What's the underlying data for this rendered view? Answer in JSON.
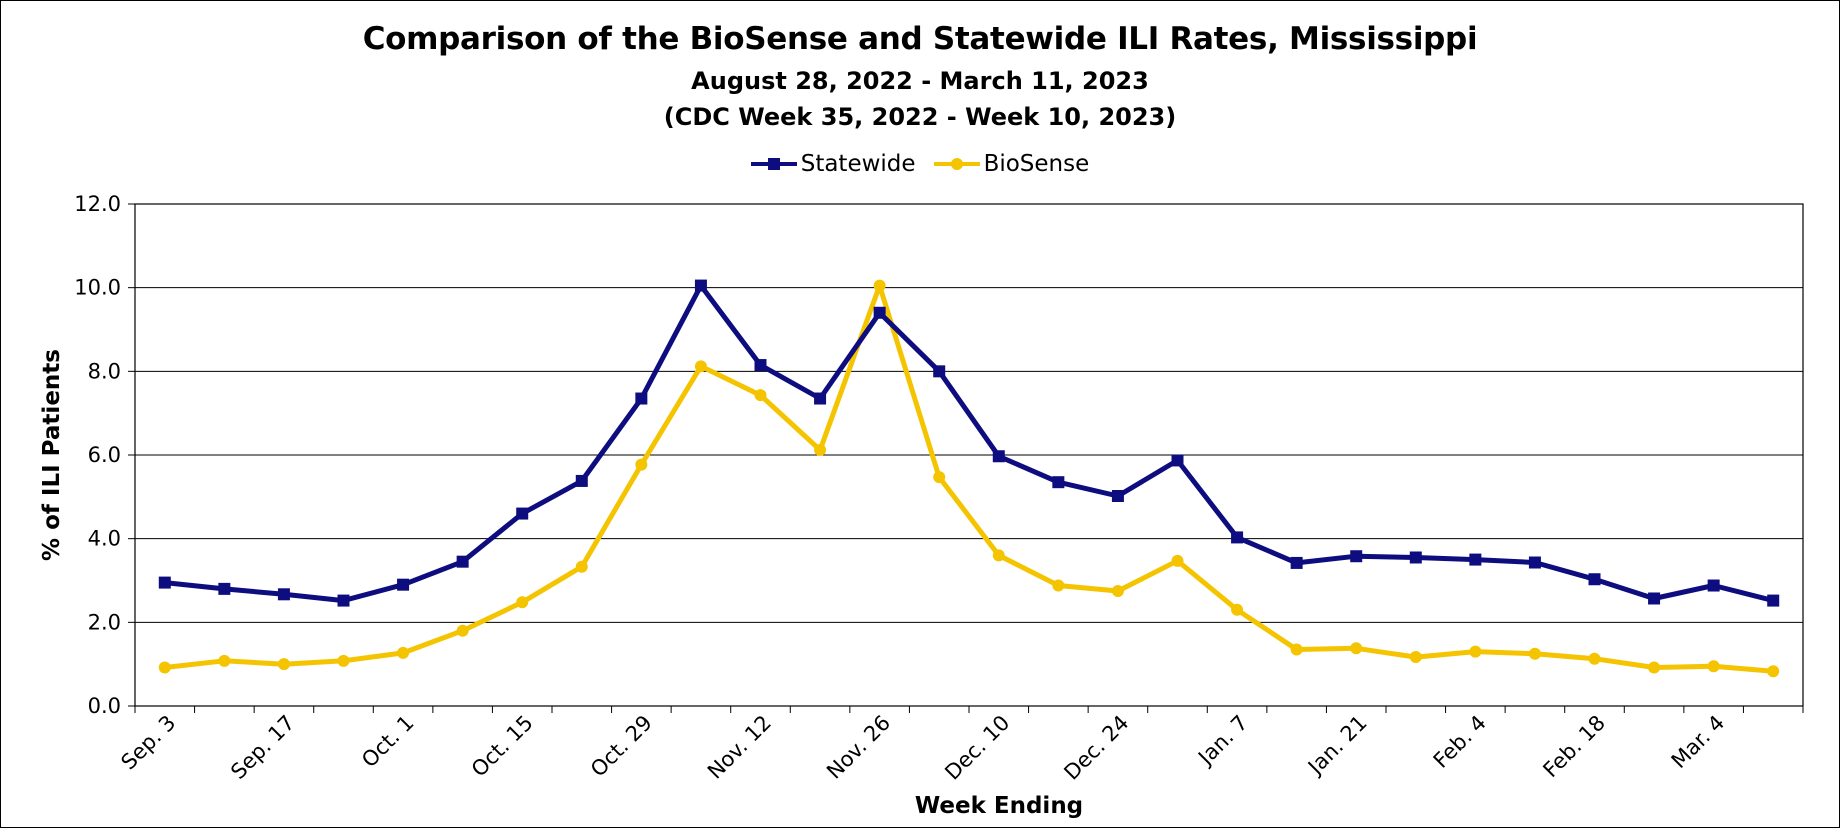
{
  "chart_data": {
    "type": "line",
    "title": "Comparison of the BioSense and Statewide ILI Rates, Mississippi",
    "subtitle": [
      "August 28, 2022 - March 11, 2023",
      "(CDC Week 35, 2022 - Week 10, 2023)"
    ],
    "xlabel": "Week Ending",
    "ylabel": "% of ILI Patients",
    "ylim": [
      0,
      12
    ],
    "yticks": [
      "0.0",
      "2.0",
      "4.0",
      "6.0",
      "8.0",
      "10.0",
      "12.0"
    ],
    "grid": true,
    "legend_position": "top-center",
    "x": [
      "Sep. 3",
      "Sep. 10",
      "Sep. 17",
      "Sep. 24",
      "Oct. 1",
      "Oct. 8",
      "Oct. 15",
      "Oct. 22",
      "Oct. 29",
      "Nov. 5",
      "Nov. 12",
      "Nov. 19",
      "Nov. 26",
      "Dec. 3",
      "Dec. 10",
      "Dec. 17",
      "Dec. 24",
      "Dec. 31",
      "Jan. 7",
      "Jan. 14",
      "Jan. 21",
      "Jan. 28",
      "Feb. 4",
      "Feb. 11",
      "Feb. 18",
      "Feb. 25",
      "Mar. 4",
      "Mar. 11"
    ],
    "x_tick_labels": [
      "Sep. 3",
      "Sep. 17",
      "Oct. 1",
      "Oct. 15",
      "Oct. 29",
      "Nov. 12",
      "Nov. 26",
      "Dec. 10",
      "Dec. 24",
      "Jan. 7",
      "Jan. 21",
      "Feb. 4",
      "Feb. 18",
      "Mar. 4"
    ],
    "series": [
      {
        "name": "Statewide",
        "color": "#0d0d80",
        "marker": "square",
        "values": [
          2.95,
          2.8,
          2.67,
          2.52,
          2.9,
          3.45,
          4.6,
          5.38,
          7.35,
          10.05,
          8.15,
          7.35,
          9.4,
          8.0,
          5.97,
          5.35,
          5.02,
          5.87,
          4.03,
          3.42,
          3.58,
          3.55,
          3.5,
          3.43,
          3.03,
          2.57,
          2.88,
          2.52
        ]
      },
      {
        "name": "BioSense",
        "color": "#f5c400",
        "marker": "circle",
        "values": [
          0.92,
          1.08,
          1.0,
          1.08,
          1.27,
          1.8,
          2.48,
          3.33,
          5.77,
          8.12,
          7.43,
          6.12,
          10.05,
          5.47,
          3.6,
          2.88,
          2.75,
          3.47,
          2.3,
          1.35,
          1.38,
          1.17,
          1.3,
          1.25,
          1.13,
          0.92,
          0.95,
          0.83
        ]
      }
    ]
  }
}
